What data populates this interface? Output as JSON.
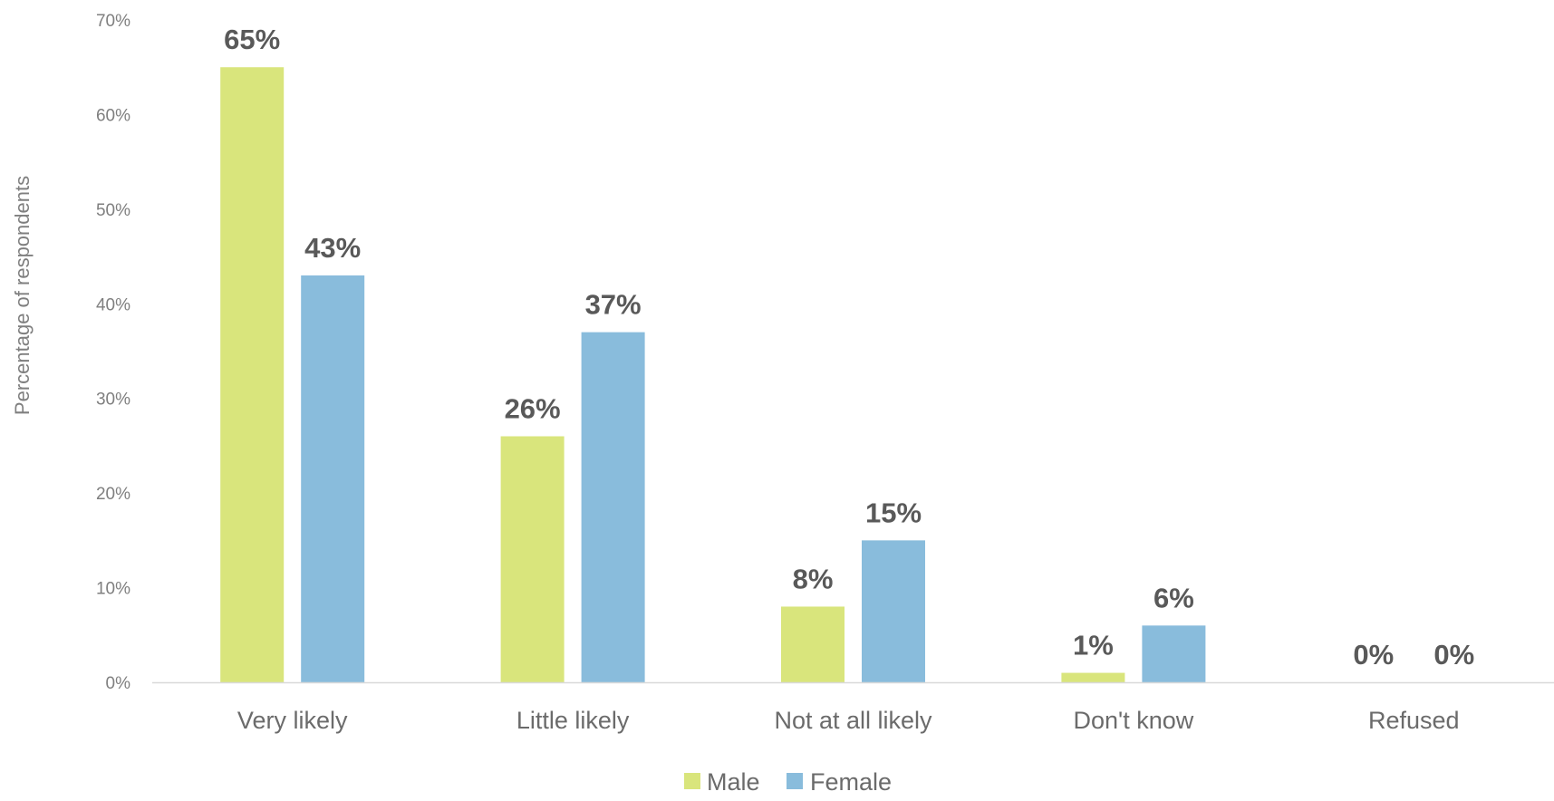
{
  "chart_data": {
    "type": "bar",
    "categories": [
      "Very likely",
      "Little likely",
      "Not at all likely",
      "Don't know",
      "Refused"
    ],
    "series": [
      {
        "name": "Male",
        "color": "#d9e57c",
        "values": [
          65,
          26,
          8,
          1,
          0
        ],
        "labels": [
          "65%",
          "26%",
          "8%",
          "1%",
          "0%"
        ]
      },
      {
        "name": "Female",
        "color": "#89bcdc",
        "values": [
          43,
          37,
          15,
          6,
          0
        ],
        "labels": [
          "43%",
          "37%",
          "15%",
          "6%",
          "0%"
        ]
      }
    ],
    "xlabel": "",
    "ylabel": "Percentage of respondents",
    "ylim": [
      0,
      70
    ],
    "yticks": [
      0,
      10,
      20,
      30,
      40,
      50,
      60,
      70
    ],
    "ytick_labels": [
      "0%",
      "10%",
      "20%",
      "30%",
      "40%",
      "50%",
      "60%",
      "70%"
    ],
    "grid": false,
    "legend_position": "bottom",
    "axis_color": "#d9d9d9",
    "text_color": "#7f7f7f",
    "label_color": "#595959"
  }
}
